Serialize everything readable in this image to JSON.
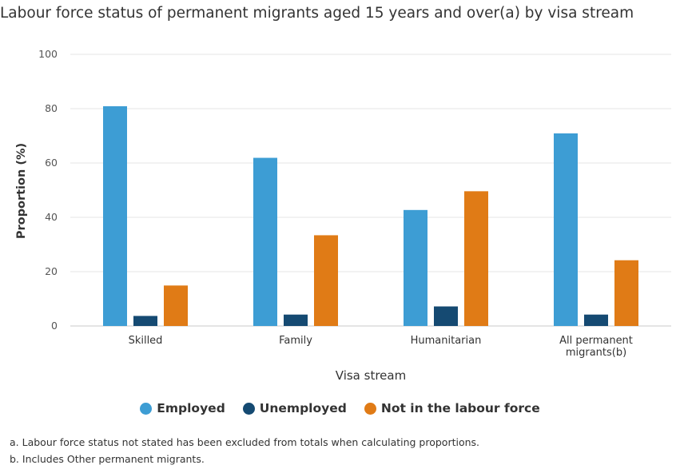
{
  "chart_data": {
    "type": "bar",
    "title": "Labour force status of permanent migrants aged 15 years and over(a) by visa stream",
    "xlabel": "Visa stream",
    "ylabel": "Proportion (%)",
    "ylim": [
      0,
      100
    ],
    "yticks": [
      "0",
      "20",
      "40",
      "60",
      "80",
      "100"
    ],
    "categories": [
      [
        "Skilled"
      ],
      [
        "Family"
      ],
      [
        "Humanitarian"
      ],
      [
        "All permanent",
        "migrants(b)"
      ]
    ],
    "series": [
      {
        "name": "Employed",
        "color": "#3d9dd4",
        "values": [
          80.9,
          61.9,
          42.7,
          70.9
        ]
      },
      {
        "name": "Unemployed",
        "color": "#154a72",
        "values": [
          3.7,
          4.2,
          7.2,
          4.2
        ]
      },
      {
        "name": "Not in the labour force",
        "color": "#e07b16",
        "values": [
          14.9,
          33.4,
          49.6,
          24.2
        ]
      }
    ],
    "grid": true,
    "legend_position": "bottom"
  },
  "footnotes": [
    "a. Labour force status not stated has been excluded from totals when calculating proportions.",
    "b. Includes Other permanent migrants."
  ]
}
